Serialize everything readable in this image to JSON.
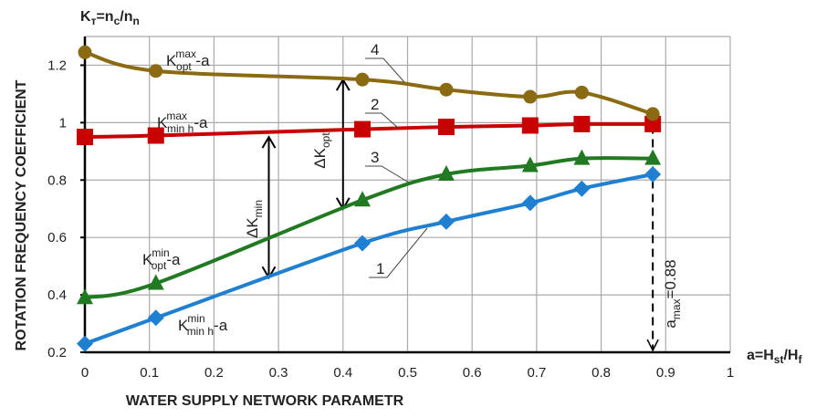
{
  "chart_data": {
    "type": "line",
    "title": "",
    "y_title": {
      "base": "K",
      "sub1": "т",
      "mid": "=n",
      "sub2": "c",
      "slash": "/n",
      "sub3": "n"
    },
    "ylabel": "ROTATION FREQUENCY COEFFICIENT",
    "xlabel": "WATER SUPPLY NETWORK PARAMETR",
    "x_axis_title": {
      "base": "a=H",
      "sub1": "st",
      "slash": "/H",
      "sub2": "f"
    },
    "xlim": [
      0,
      1
    ],
    "ylim": [
      0.2,
      1.3
    ],
    "grid": true,
    "x_ticks": [
      0,
      0.1,
      0.2,
      0.3,
      0.4,
      0.5,
      0.6,
      0.7,
      0.8,
      0.9,
      1
    ],
    "x_tick_labels": [
      "0",
      "0.1",
      "0.2",
      "0.3",
      "0.4",
      "0.5",
      "0.6",
      "0.7",
      "0.8",
      "0.9",
      "1"
    ],
    "y_ticks": [
      0.2,
      0.4,
      0.6,
      0.8,
      1.0,
      1.2
    ],
    "y_tick_labels": [
      "0.2",
      "0.4",
      "0.6",
      "0.8",
      "1",
      "1.2"
    ],
    "x": [
      0,
      0.11,
      0.43,
      0.56,
      0.69,
      0.77,
      0.88
    ],
    "series": [
      {
        "id": "1",
        "name": "K min h (min) - a",
        "color": "#1f7fd0",
        "marker": "diamond",
        "values": [
          0.23,
          0.32,
          0.58,
          0.655,
          0.72,
          0.77,
          0.82
        ],
        "label": {
          "base": "K",
          "sup": "min",
          "sub": "min h",
          "suffix": "-a"
        }
      },
      {
        "id": "2",
        "name": "K min h (max) - a",
        "color": "#c80000",
        "marker": "square",
        "values": [
          0.95,
          0.955,
          0.977,
          0.985,
          0.99,
          0.995,
          0.995
        ],
        "label": {
          "base": "K",
          "sup": "max",
          "sub": "min h",
          "suffix": "-a"
        }
      },
      {
        "id": "3",
        "name": "K opt (min) - a",
        "color": "#217a21",
        "marker": "triangle",
        "values": [
          0.39,
          0.44,
          0.73,
          0.82,
          0.85,
          0.875,
          0.875
        ],
        "label": {
          "base": "K",
          "sup": "min",
          "sub": "opt",
          "suffix": "-a"
        }
      },
      {
        "id": "4",
        "name": "K opt (max) - a",
        "color": "#8b6b12",
        "marker": "circle",
        "values": [
          1.245,
          1.18,
          1.15,
          1.115,
          1.09,
          1.105,
          1.03
        ],
        "label": {
          "base": "K",
          "sup": "max",
          "sub": "opt",
          "suffix": " -a"
        }
      }
    ],
    "annotations": {
      "delta_k_opt": {
        "text": "ΔK",
        "sub": "opt",
        "x": 0.4,
        "y_from": 0.7,
        "y_to": 1.15
      },
      "delta_k_min": {
        "text": "ΔK",
        "sub": "min",
        "x": 0.285,
        "y_from": 0.46,
        "y_to": 0.95
      },
      "a_max": {
        "text": "a",
        "sub": "max",
        "value_text": "=0.88",
        "x": 0.88
      }
    }
  }
}
